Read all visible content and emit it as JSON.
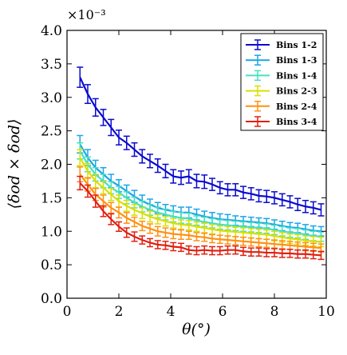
{
  "chart_data": {
    "type": "line",
    "title": "",
    "xlabel": "θ(°)",
    "ylabel": "⟨δod × δod⟩",
    "y_multiplier": "×10⁻³",
    "xlim": [
      0,
      10
    ],
    "ylim": [
      0.0,
      4.0
    ],
    "x_ticks": [
      "0",
      "2",
      "4",
      "6",
      "8",
      "10"
    ],
    "y_ticks": [
      "0.0",
      "0.5",
      "1.0",
      "1.5",
      "2.0",
      "2.5",
      "3.0",
      "3.5",
      "4.0"
    ],
    "legend_position": "top-right",
    "error_bars": true,
    "x": [
      0.5,
      0.8,
      1.1,
      1.4,
      1.7,
      2.0,
      2.3,
      2.6,
      2.9,
      3.2,
      3.5,
      3.8,
      4.1,
      4.4,
      4.7,
      5.0,
      5.3,
      5.6,
      5.9,
      6.2,
      6.5,
      6.8,
      7.1,
      7.4,
      7.7,
      8.0,
      8.3,
      8.6,
      8.9,
      9.2,
      9.5,
      9.8
    ],
    "series": [
      {
        "name": "Bins 1-2",
        "color": "#0a0ad0",
        "values": [
          3.3,
          3.05,
          2.85,
          2.7,
          2.55,
          2.4,
          2.32,
          2.22,
          2.12,
          2.05,
          1.98,
          1.9,
          1.82,
          1.8,
          1.82,
          1.75,
          1.74,
          1.7,
          1.65,
          1.62,
          1.62,
          1.58,
          1.56,
          1.53,
          1.52,
          1.5,
          1.47,
          1.44,
          1.4,
          1.37,
          1.35,
          1.32
        ],
        "errors": [
          0.15,
          0.14,
          0.13,
          0.12,
          0.12,
          0.11,
          0.1,
          0.1,
          0.1,
          0.1,
          0.1,
          0.1,
          0.1,
          0.1,
          0.1,
          0.1,
          0.1,
          0.09,
          0.09,
          0.09,
          0.09,
          0.09,
          0.09,
          0.09,
          0.09,
          0.09,
          0.09,
          0.09,
          0.09,
          0.09,
          0.09,
          0.09
        ]
      },
      {
        "name": "Bins 1-3",
        "color": "#1aa6e8",
        "values": [
          2.3,
          2.1,
          1.95,
          1.85,
          1.75,
          1.68,
          1.6,
          1.52,
          1.45,
          1.4,
          1.35,
          1.32,
          1.3,
          1.28,
          1.28,
          1.25,
          1.22,
          1.2,
          1.18,
          1.17,
          1.16,
          1.15,
          1.14,
          1.13,
          1.12,
          1.1,
          1.08,
          1.06,
          1.05,
          1.03,
          1.01,
          1.0
        ],
        "errors": [
          0.13,
          0.12,
          0.11,
          0.1,
          0.1,
          0.09,
          0.09,
          0.09,
          0.09,
          0.08,
          0.08,
          0.08,
          0.08,
          0.08,
          0.08,
          0.08,
          0.08,
          0.08,
          0.08,
          0.08,
          0.07,
          0.07,
          0.07,
          0.07,
          0.07,
          0.07,
          0.07,
          0.07,
          0.07,
          0.07,
          0.07,
          0.07
        ]
      },
      {
        "name": "Bins 1-4",
        "color": "#46e0c0",
        "values": [
          2.2,
          2.0,
          1.85,
          1.75,
          1.65,
          1.58,
          1.5,
          1.43,
          1.37,
          1.32,
          1.28,
          1.25,
          1.22,
          1.2,
          1.19,
          1.16,
          1.14,
          1.12,
          1.1,
          1.09,
          1.08,
          1.07,
          1.06,
          1.05,
          1.04,
          1.02,
          1.0,
          0.98,
          0.97,
          0.95,
          0.93,
          0.92
        ],
        "errors": [
          0.12,
          0.11,
          0.1,
          0.1,
          0.09,
          0.09,
          0.09,
          0.08,
          0.08,
          0.08,
          0.08,
          0.08,
          0.08,
          0.08,
          0.08,
          0.07,
          0.07,
          0.07,
          0.07,
          0.07,
          0.07,
          0.07,
          0.07,
          0.07,
          0.07,
          0.07,
          0.07,
          0.07,
          0.07,
          0.07,
          0.07,
          0.07
        ]
      },
      {
        "name": "Bins 2-3",
        "color": "#d8e000",
        "values": [
          2.1,
          1.9,
          1.75,
          1.65,
          1.55,
          1.45,
          1.38,
          1.32,
          1.27,
          1.22,
          1.18,
          1.15,
          1.12,
          1.1,
          1.09,
          1.07,
          1.05,
          1.03,
          1.01,
          1.0,
          0.99,
          0.98,
          0.97,
          0.96,
          0.95,
          0.93,
          0.91,
          0.89,
          0.88,
          0.86,
          0.85,
          0.84
        ],
        "errors": [
          0.12,
          0.11,
          0.1,
          0.09,
          0.09,
          0.09,
          0.08,
          0.08,
          0.08,
          0.08,
          0.07,
          0.07,
          0.07,
          0.07,
          0.07,
          0.07,
          0.07,
          0.07,
          0.07,
          0.07,
          0.07,
          0.07,
          0.07,
          0.07,
          0.07,
          0.07,
          0.07,
          0.07,
          0.07,
          0.07,
          0.07,
          0.07
        ]
      },
      {
        "name": "Bins 2-4",
        "color": "#ff9010",
        "values": [
          1.85,
          1.7,
          1.55,
          1.45,
          1.35,
          1.28,
          1.2,
          1.14,
          1.08,
          1.04,
          1.0,
          0.98,
          0.96,
          0.95,
          0.94,
          0.92,
          0.91,
          0.89,
          0.88,
          0.87,
          0.86,
          0.85,
          0.84,
          0.83,
          0.82,
          0.81,
          0.8,
          0.79,
          0.78,
          0.77,
          0.76,
          0.75
        ],
        "errors": [
          0.11,
          0.1,
          0.09,
          0.09,
          0.08,
          0.08,
          0.08,
          0.07,
          0.07,
          0.07,
          0.07,
          0.07,
          0.07,
          0.07,
          0.06,
          0.06,
          0.06,
          0.06,
          0.06,
          0.06,
          0.06,
          0.06,
          0.06,
          0.06,
          0.06,
          0.06,
          0.06,
          0.06,
          0.06,
          0.06,
          0.06,
          0.06
        ]
      },
      {
        "name": "Bins 3-4",
        "color": "#e02010",
        "values": [
          1.72,
          1.6,
          1.45,
          1.3,
          1.18,
          1.07,
          0.98,
          0.92,
          0.87,
          0.83,
          0.8,
          0.79,
          0.77,
          0.76,
          0.72,
          0.71,
          0.72,
          0.71,
          0.71,
          0.72,
          0.72,
          0.7,
          0.69,
          0.69,
          0.68,
          0.68,
          0.67,
          0.67,
          0.66,
          0.66,
          0.65,
          0.64
        ],
        "errors": [
          0.1,
          0.09,
          0.09,
          0.08,
          0.08,
          0.07,
          0.07,
          0.07,
          0.06,
          0.06,
          0.06,
          0.06,
          0.06,
          0.06,
          0.06,
          0.06,
          0.06,
          0.06,
          0.06,
          0.06,
          0.06,
          0.06,
          0.06,
          0.06,
          0.06,
          0.06,
          0.06,
          0.06,
          0.06,
          0.06,
          0.06,
          0.06
        ]
      }
    ]
  }
}
